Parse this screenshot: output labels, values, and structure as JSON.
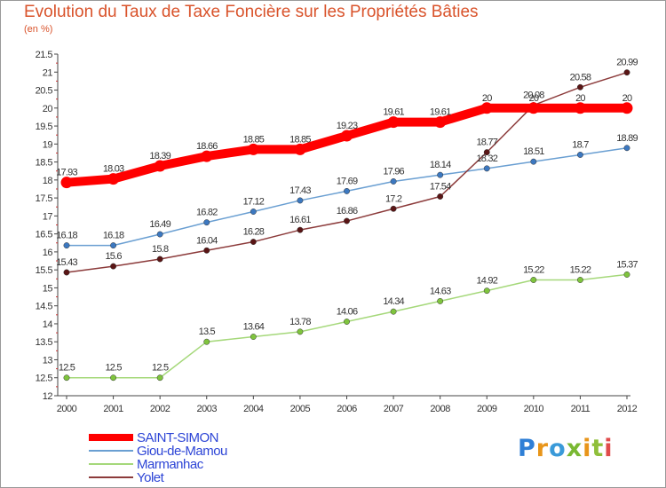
{
  "title": "Evolution du Taux de Taxe Foncière sur les Propriétés Bâties",
  "unit": "(en %)",
  "logo": {
    "text": "Proxiti",
    "colors": [
      "#2f7fd6",
      "#e8951a",
      "#3a9ad9",
      "#79b832",
      "#e8951a",
      "#8fbf3a",
      "#e04b4b"
    ]
  },
  "chart_data": {
    "type": "line",
    "x": [
      2000,
      2001,
      2002,
      2003,
      2004,
      2005,
      2006,
      2007,
      2008,
      2009,
      2010,
      2011,
      2012
    ],
    "ylim": [
      12,
      21.5
    ],
    "yticks": [
      "12",
      "12.5",
      "13",
      "13.5",
      "14",
      "14.5",
      "15",
      "15.5",
      "16",
      "16.5",
      "17",
      "17.5",
      "18",
      "18.5",
      "19",
      "19.5",
      "20",
      "20.5",
      "21",
      "21.5"
    ],
    "grid": false,
    "legend": "bottom-left",
    "series": [
      {
        "name": "SAINT-SIMON",
        "color": "#ff0000",
        "thick": true,
        "values": [
          17.93,
          18.03,
          18.39,
          18.66,
          18.85,
          18.85,
          19.23,
          19.61,
          19.61,
          20,
          20,
          20,
          20
        ],
        "labels": [
          "17.93",
          "18.03",
          "18.39",
          "18.66",
          "18.85",
          "18.85",
          "19.23",
          "19.61",
          "19.61",
          "20",
          "20",
          "20",
          "20"
        ]
      },
      {
        "name": "Giou-de-Mamou",
        "color": "#6a9fd2",
        "marker": "#3c78c0",
        "thick": false,
        "values": [
          16.18,
          16.18,
          16.49,
          16.82,
          17.12,
          17.43,
          17.69,
          17.96,
          18.14,
          18.32,
          18.51,
          18.7,
          18.89
        ],
        "labels": [
          "16.18",
          "16.18",
          "16.49",
          "16.82",
          "17.12",
          "17.43",
          "17.69",
          "17.96",
          "18.14",
          "18.32",
          "18.51",
          "18.7",
          "18.89"
        ]
      },
      {
        "name": "Marmanhac",
        "color": "#a5d87a",
        "marker": "#7fc43d",
        "thick": false,
        "values": [
          12.5,
          12.5,
          12.5,
          13.5,
          13.64,
          13.78,
          14.06,
          14.34,
          14.63,
          14.92,
          15.22,
          15.22,
          15.37
        ],
        "labels": [
          "12.5",
          "12.5",
          "12.5",
          "13.5",
          "13.64",
          "13.78",
          "14.06",
          "14.34",
          "14.63",
          "14.92",
          "15.22",
          "15.22",
          "15.37"
        ]
      },
      {
        "name": "Yolet",
        "color": "#8c3b3b",
        "marker": "#5a1515",
        "thick": false,
        "values": [
          15.43,
          15.6,
          15.8,
          16.04,
          16.28,
          16.61,
          16.86,
          17.2,
          17.54,
          18.77,
          20.08,
          20.58,
          20.99
        ],
        "labels": [
          "15.43",
          "15.6",
          "15.8",
          "16.04",
          "16.28",
          "16.61",
          "16.86",
          "17.2",
          "17.54",
          "18.77",
          "20.08",
          "20.58",
          "20.99"
        ]
      }
    ]
  }
}
